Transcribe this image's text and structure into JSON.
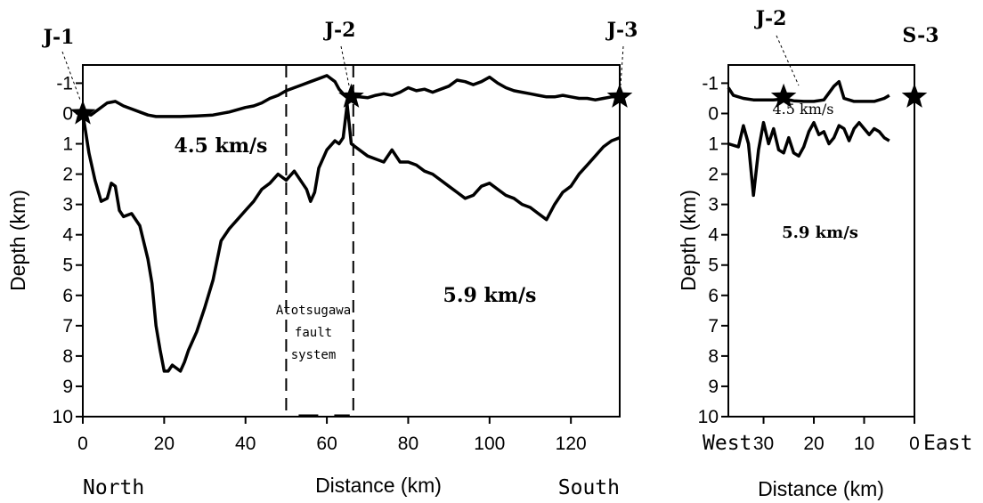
{
  "chart_data": [
    {
      "type": "line",
      "panel": "left",
      "ylabel": "Depth (km)",
      "xlabel": "Distance (km)",
      "xlabel_left": "North",
      "xlabel_right": "South",
      "xlim": [
        0,
        132
      ],
      "ylim": [
        -1.6,
        10
      ],
      "y_inverted": true,
      "xticks": [
        0,
        20,
        40,
        60,
        80,
        100,
        120
      ],
      "yticks": [
        -1,
        0,
        1,
        2,
        3,
        4,
        5,
        6,
        7,
        8,
        9,
        10
      ],
      "stations": [
        {
          "name": "J-1",
          "x": 0,
          "y": 0
        },
        {
          "name": "J-2",
          "x": 66,
          "y": -0.55
        },
        {
          "name": "J-3",
          "x": 132,
          "y": -0.55
        }
      ],
      "fault_lines_x": [
        50,
        66.5
      ],
      "fault_label": [
        "Atotsugawa",
        "fault",
        "system"
      ],
      "velocity_labels": [
        {
          "text": "4.5 km/s",
          "x": 24,
          "y": 1.7
        },
        {
          "text": "5.9 km/s",
          "x": 94,
          "y": 6.6
        }
      ],
      "series": [
        {
          "x": [
            0,
            2,
            4,
            6,
            8,
            10,
            12,
            14,
            16,
            18,
            20,
            24,
            28,
            32,
            36,
            40,
            42,
            44,
            46,
            48,
            50,
            52,
            54,
            56,
            58,
            60,
            62,
            63,
            64,
            65,
            66,
            68,
            70,
            72,
            74,
            76,
            78,
            80,
            82,
            84,
            86,
            88,
            90,
            92,
            94,
            96,
            98,
            100,
            102,
            104,
            106,
            108,
            110,
            112,
            114,
            116,
            118,
            120,
            122,
            124,
            126,
            128,
            130,
            132
          ],
          "y": [
            0,
            0.05,
            -0.15,
            -0.35,
            -0.4,
            -0.25,
            -0.15,
            -0.05,
            0.05,
            0.1,
            0.1,
            0.1,
            0.08,
            0.05,
            -0.05,
            -0.2,
            -0.25,
            -0.35,
            -0.5,
            -0.6,
            -0.75,
            -0.85,
            -0.95,
            -1.05,
            -1.15,
            -1.25,
            -1.05,
            -0.8,
            -0.65,
            -0.6,
            -0.55,
            -0.55,
            -0.52,
            -0.6,
            -0.65,
            -0.6,
            -0.7,
            -0.85,
            -0.75,
            -0.8,
            -0.7,
            -0.8,
            -0.9,
            -1.1,
            -1.05,
            -0.95,
            -1.05,
            -1.2,
            -1.0,
            -0.85,
            -0.75,
            -0.7,
            -0.65,
            -0.6,
            -0.55,
            -0.55,
            -0.6,
            -0.55,
            -0.5,
            -0.5,
            -0.45,
            -0.5,
            -0.55,
            -0.55
          ]
        },
        {
          "x": [
            0,
            1.5,
            3,
            4.5,
            6,
            7,
            8,
            9,
            10,
            12,
            14,
            16,
            17,
            18,
            19,
            20,
            21,
            22,
            23,
            24,
            25,
            26,
            28,
            30,
            32,
            34,
            36,
            38,
            40,
            42,
            44,
            46,
            48,
            50,
            52,
            54,
            55,
            56,
            57,
            58,
            60,
            62,
            63,
            64,
            65,
            66,
            68,
            70,
            72,
            74,
            76,
            78,
            80,
            82,
            84,
            86,
            88,
            90,
            92,
            94,
            96,
            98,
            100,
            102,
            104,
            106,
            108,
            110,
            112,
            114,
            116,
            118,
            120,
            122,
            124,
            126,
            128,
            130,
            132
          ],
          "y": [
            0,
            1.3,
            2.2,
            2.9,
            2.8,
            2.3,
            2.4,
            3.2,
            3.4,
            3.3,
            3.7,
            4.8,
            5.6,
            7.0,
            7.8,
            8.5,
            8.5,
            8.3,
            8.4,
            8.5,
            8.2,
            7.8,
            7.2,
            6.4,
            5.5,
            4.2,
            3.8,
            3.5,
            3.2,
            2.9,
            2.5,
            2.3,
            2.0,
            2.2,
            1.9,
            2.3,
            2.5,
            2.9,
            2.6,
            1.8,
            1.2,
            0.9,
            1.0,
            0.8,
            -0.3,
            1.0,
            1.2,
            1.4,
            1.5,
            1.6,
            1.2,
            1.6,
            1.6,
            1.7,
            1.9,
            2.0,
            2.2,
            2.4,
            2.6,
            2.8,
            2.7,
            2.4,
            2.3,
            2.5,
            2.7,
            2.8,
            3.0,
            3.1,
            3.3,
            3.5,
            3.0,
            2.6,
            2.4,
            2.0,
            1.7,
            1.4,
            1.1,
            0.9,
            0.8
          ]
        }
      ]
    },
    {
      "type": "line",
      "panel": "right",
      "ylabel": "Depth (km)",
      "xlabel": "Distance (km)",
      "xlabel_left": "West",
      "xlabel_right": "East",
      "xlim": [
        37,
        0
      ],
      "ylim": [
        -1.6,
        10
      ],
      "y_inverted": true,
      "x_reversed": true,
      "xticks": [
        30,
        20,
        10,
        0
      ],
      "yticks": [
        -1,
        0,
        1,
        2,
        3,
        4,
        5,
        6,
        7,
        8,
        9,
        10
      ],
      "stations": [
        {
          "name": "J-2",
          "x": 26,
          "y": -0.55
        },
        {
          "name": "S-3",
          "x": 0,
          "y": -0.55
        }
      ],
      "velocity_labels": [
        {
          "text": "4.5 km/s",
          "x": 26,
          "y": -0.05
        },
        {
          "text": "5.9 km/s",
          "x": 25,
          "y": 4.6
        }
      ],
      "series": [
        {
          "x": [
            37,
            36,
            34,
            32,
            30,
            28,
            26,
            24,
            22,
            20,
            18,
            16,
            15,
            14,
            13,
            12,
            10,
            8,
            6,
            5
          ],
          "y": [
            -0.85,
            -0.6,
            -0.5,
            -0.45,
            -0.45,
            -0.45,
            -0.48,
            -0.42,
            -0.4,
            -0.4,
            -0.45,
            -0.9,
            -1.05,
            -0.5,
            -0.45,
            -0.4,
            -0.4,
            -0.4,
            -0.5,
            -0.6
          ]
        },
        {
          "x": [
            37,
            35,
            34,
            33,
            32,
            31,
            30,
            29,
            28,
            27,
            26,
            25,
            24,
            23,
            22,
            21,
            20,
            19,
            18,
            17,
            16,
            15,
            14,
            13,
            12,
            11,
            10,
            9,
            8,
            7,
            6,
            5
          ],
          "y": [
            1.0,
            1.1,
            0.4,
            1.0,
            2.7,
            1.2,
            0.3,
            1.0,
            0.5,
            1.2,
            1.3,
            0.8,
            1.3,
            1.4,
            1.1,
            0.6,
            0.3,
            0.7,
            0.6,
            1.0,
            0.8,
            0.4,
            0.5,
            0.9,
            0.5,
            0.3,
            0.5,
            0.7,
            0.5,
            0.6,
            0.8,
            0.9
          ]
        }
      ]
    }
  ]
}
